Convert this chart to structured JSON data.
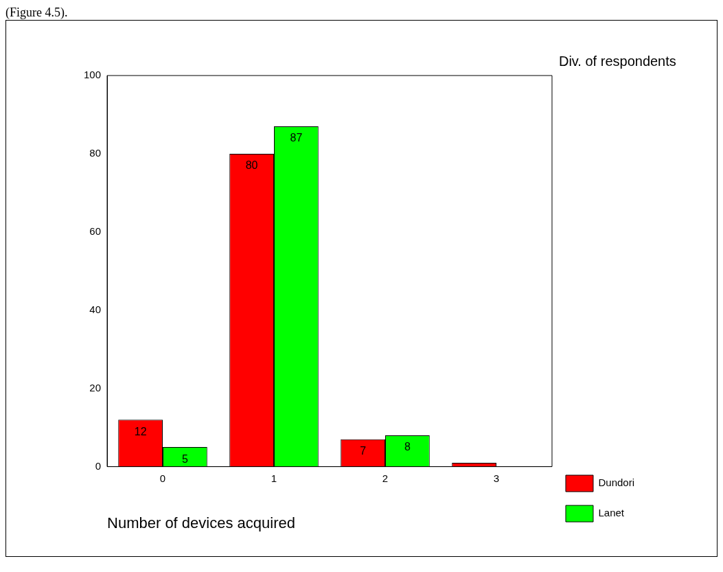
{
  "chart_data": {
    "type": "bar",
    "xlabel": "Number of devices acquired",
    "categories": [
      "0",
      "1",
      "2",
      "3"
    ],
    "series": [
      {
        "name": "Dundori",
        "color": "#ff0000",
        "values": [
          12,
          80,
          7,
          1
        ],
        "value_labels": [
          "12",
          "80",
          "7",
          null
        ]
      },
      {
        "name": "Lanet",
        "color": "#00ff00",
        "values": [
          5,
          87,
          8,
          0
        ],
        "value_labels": [
          "5",
          "87",
          "8",
          null
        ]
      }
    ],
    "ylim": [
      0,
      100
    ],
    "yticks": [
      0,
      20,
      40,
      60,
      80,
      100
    ],
    "grid": false,
    "legend": "right",
    "legend_title": "Div. of respondents",
    "annotations": [
      "(Figure 4.5)."
    ]
  }
}
